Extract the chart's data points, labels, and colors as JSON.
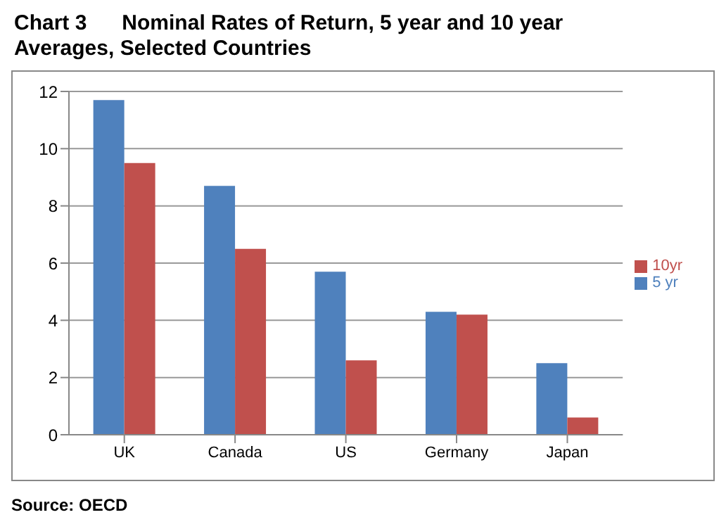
{
  "chart_data": {
    "type": "bar",
    "title": "Chart 3      Nominal Rates of Return, 5 year and 10 year Averages, Selected Countries",
    "categories": [
      "UK",
      "Canada",
      "US",
      "Germany",
      "Japan"
    ],
    "series": [
      {
        "name": "5 yr",
        "color": "#4f81bd",
        "values": [
          11.7,
          8.7,
          5.7,
          4.3,
          2.5
        ]
      },
      {
        "name": "10yr",
        "color": "#c0504d",
        "values": [
          9.5,
          6.5,
          2.6,
          4.2,
          0.6
        ]
      }
    ],
    "ylim": [
      0,
      12
    ],
    "yticks": [
      0,
      2,
      4,
      6,
      8,
      10,
      12
    ],
    "grid": "y",
    "legend": "right",
    "annotations": [
      "Source: OECD"
    ]
  }
}
